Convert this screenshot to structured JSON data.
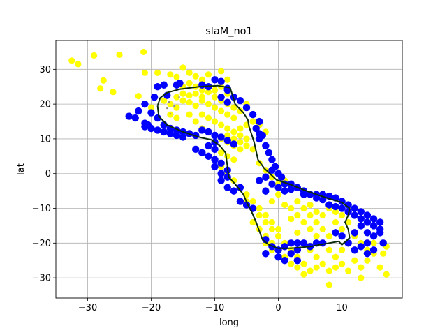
{
  "chart_data": {
    "type": "scatter",
    "title": "slaM_no1",
    "xlabel": "long",
    "ylabel": "lat",
    "xlim": [
      -35,
      19.5
    ],
    "ylim": [
      -35.8,
      38.3
    ],
    "xticks": [
      -30,
      -20,
      -10,
      0,
      10
    ],
    "yticks": [
      -30,
      -20,
      -10,
      0,
      10,
      20,
      30
    ],
    "xtick_labels": [
      "−30",
      "−20",
      "−10",
      "0",
      "10"
    ],
    "ytick_labels": [
      "−30",
      "−20",
      "−10",
      "0",
      "10",
      "20",
      "30"
    ],
    "grid": true,
    "colors": {
      "yellow_points": "#ffff00",
      "blue_points": "#0000ff",
      "outline": "#0b2a0b",
      "small_points": "#888888"
    },
    "yellow_points": [
      [
        -32.5,
        32.5
      ],
      [
        -31.5,
        31.5
      ],
      [
        -29,
        34
      ],
      [
        -25,
        34.2
      ],
      [
        -21.2,
        35
      ],
      [
        -28,
        24.5
      ],
      [
        -27.5,
        26.8
      ],
      [
        -26,
        23.5
      ],
      [
        -22,
        22.3
      ],
      [
        -21,
        29
      ],
      [
        -19,
        29
      ],
      [
        -17,
        28.5
      ],
      [
        -16,
        27.8
      ],
      [
        -15,
        30.5
      ],
      [
        -14,
        29
      ],
      [
        -13,
        28
      ],
      [
        -12,
        27
      ],
      [
        -11,
        28.5
      ],
      [
        -9,
        29.5
      ],
      [
        -8,
        27
      ],
      [
        -20,
        19
      ],
      [
        -18,
        21
      ],
      [
        -17,
        20
      ],
      [
        -16,
        19
      ],
      [
        -15,
        21
      ],
      [
        -14,
        20.5
      ],
      [
        -13,
        19.5
      ],
      [
        -12,
        21
      ],
      [
        -11,
        20
      ],
      [
        -10,
        19
      ],
      [
        -9,
        18
      ],
      [
        -8,
        17
      ],
      [
        -7,
        16
      ],
      [
        -16,
        22
      ],
      [
        -15,
        23
      ],
      [
        -14,
        22.5
      ],
      [
        -13,
        23
      ],
      [
        -12,
        22
      ],
      [
        -11,
        23.5
      ],
      [
        -10,
        22
      ],
      [
        -9,
        21
      ],
      [
        -8,
        20
      ],
      [
        -7,
        19
      ],
      [
        -6,
        18
      ],
      [
        -12,
        17
      ],
      [
        -11,
        16
      ],
      [
        -10,
        15
      ],
      [
        -9,
        14
      ],
      [
        -8,
        13
      ],
      [
        -7,
        12
      ],
      [
        -6,
        11
      ],
      [
        -5,
        10
      ],
      [
        -8,
        11
      ],
      [
        -7,
        10
      ],
      [
        -6,
        9
      ],
      [
        -5,
        8
      ],
      [
        -4,
        7
      ],
      [
        -9,
        10
      ],
      [
        -8,
        9
      ],
      [
        -7,
        8
      ],
      [
        -6,
        7
      ],
      [
        -9,
        6
      ],
      [
        -8,
        5
      ],
      [
        -7,
        4
      ],
      [
        -9,
        2
      ],
      [
        -8,
        0
      ],
      [
        -7,
        -2
      ],
      [
        -6,
        -4
      ],
      [
        -5,
        -6
      ],
      [
        -4,
        -8
      ],
      [
        -3,
        -10
      ],
      [
        -2,
        -12
      ],
      [
        -1,
        -14
      ],
      [
        0,
        -16
      ],
      [
        -3,
        3
      ],
      [
        -2,
        1
      ],
      [
        -1,
        -1
      ],
      [
        0,
        -3
      ],
      [
        1,
        -5
      ],
      [
        -5,
        -8
      ],
      [
        -4,
        -10
      ],
      [
        -3,
        -12
      ],
      [
        -2,
        -14
      ],
      [
        -1,
        -16
      ],
      [
        0,
        -18
      ],
      [
        1,
        -20
      ],
      [
        2,
        -22
      ],
      [
        3,
        -24
      ],
      [
        4,
        -26
      ],
      [
        5,
        -28
      ],
      [
        6,
        -27
      ],
      [
        7,
        -26
      ],
      [
        8,
        -28
      ],
      [
        9,
        -27
      ],
      [
        10,
        -26
      ],
      [
        11,
        -28
      ],
      [
        12,
        -25
      ],
      [
        13,
        -27
      ],
      [
        14,
        -25
      ],
      [
        15,
        -23
      ],
      [
        16,
        -27
      ],
      [
        16.5,
        -23
      ],
      [
        17,
        -21
      ],
      [
        17,
        -29
      ],
      [
        13,
        -30
      ],
      [
        8,
        -32
      ],
      [
        4,
        -29
      ],
      [
        2,
        -10
      ],
      [
        3,
        -12
      ],
      [
        4,
        -14
      ],
      [
        5,
        -16
      ],
      [
        6,
        -18
      ],
      [
        7,
        -20
      ],
      [
        8,
        -22
      ],
      [
        9,
        -24
      ],
      [
        10,
        -22
      ],
      [
        11,
        -20
      ],
      [
        12,
        -18
      ],
      [
        13,
        -20
      ],
      [
        14,
        -22
      ],
      [
        15,
        -20
      ],
      [
        3,
        -8
      ],
      [
        4,
        -10
      ],
      [
        5,
        -12
      ],
      [
        6,
        -14
      ],
      [
        7,
        -16
      ],
      [
        8,
        -18
      ],
      [
        9,
        -14
      ],
      [
        10,
        -16
      ],
      [
        11,
        -14
      ],
      [
        12,
        -12
      ],
      [
        -1,
        -8
      ],
      [
        0,
        -6
      ],
      [
        1,
        -9
      ],
      [
        2,
        -13
      ],
      [
        3,
        -17
      ],
      [
        4,
        -20
      ],
      [
        5,
        -22
      ],
      [
        6,
        -24
      ],
      [
        -2,
        -18
      ],
      [
        -1,
        -20
      ],
      [
        0,
        -22
      ],
      [
        1,
        -24
      ],
      [
        2,
        -26
      ],
      [
        3,
        -27
      ],
      [
        -4,
        15
      ],
      [
        -3,
        14
      ],
      [
        -2,
        12
      ],
      [
        -5,
        14
      ],
      [
        -6,
        13
      ],
      [
        -10,
        24
      ],
      [
        -9,
        25
      ],
      [
        -8,
        23
      ],
      [
        -7,
        22
      ],
      [
        -6,
        21
      ],
      [
        -5,
        20
      ],
      [
        -14,
        26
      ],
      [
        -13,
        25
      ],
      [
        -12,
        24
      ],
      [
        -15,
        25
      ],
      [
        -17,
        17
      ],
      [
        -16,
        16
      ],
      [
        -14,
        17
      ],
      [
        -13,
        15
      ],
      [
        -12,
        13
      ],
      [
        -11,
        12
      ],
      [
        -10,
        11
      ],
      [
        -4,
        -14
      ],
      [
        -3,
        -16
      ],
      [
        -2,
        -20
      ],
      [
        -1,
        -22
      ],
      [
        5,
        -9
      ],
      [
        6,
        -11
      ],
      [
        7,
        -12
      ],
      [
        8,
        -10
      ],
      [
        9,
        -11
      ],
      [
        10,
        -12
      ],
      [
        4,
        -6
      ],
      [
        2,
        -4
      ],
      [
        1,
        -2
      ],
      [
        0,
        0
      ]
    ],
    "blue_points": [
      [
        -21,
        20
      ],
      [
        -22,
        18
      ],
      [
        -20,
        17.5
      ],
      [
        -19,
        16
      ],
      [
        -18,
        14
      ],
      [
        -17,
        13
      ],
      [
        -16,
        12.5
      ],
      [
        -15,
        12
      ],
      [
        -14,
        11.5
      ],
      [
        -13,
        11
      ],
      [
        -12,
        12.5
      ],
      [
        -11,
        12
      ],
      [
        -10,
        11
      ],
      [
        -9,
        10.5
      ],
      [
        -8,
        9.5
      ],
      [
        -7,
        8.5
      ],
      [
        -23.5,
        16.5
      ],
      [
        -22.5,
        16
      ],
      [
        -21,
        14.5
      ],
      [
        -20,
        13
      ],
      [
        -19,
        12.5
      ],
      [
        -18,
        12
      ],
      [
        -17,
        11.5
      ],
      [
        -16,
        11
      ],
      [
        -15,
        10.5
      ],
      [
        -19.5,
        22
      ],
      [
        -17.5,
        22.5
      ],
      [
        -16,
        25.5
      ],
      [
        -15.5,
        26
      ],
      [
        -12,
        25.5
      ],
      [
        -11,
        25
      ],
      [
        -10,
        27
      ],
      [
        -9,
        26.5
      ],
      [
        -8,
        24
      ],
      [
        -7,
        22
      ],
      [
        -6,
        21
      ],
      [
        -5,
        19
      ],
      [
        -4,
        17
      ],
      [
        -3,
        15
      ],
      [
        -3.5,
        13
      ],
      [
        -2.5,
        11
      ],
      [
        -3,
        10
      ],
      [
        -2,
        8
      ],
      [
        -1.5,
        6
      ],
      [
        -1,
        4
      ],
      [
        -0.5,
        2
      ],
      [
        0,
        0
      ],
      [
        0.5,
        -1
      ],
      [
        -2,
        -1
      ],
      [
        -1,
        -3
      ],
      [
        0,
        -4
      ],
      [
        1,
        -5
      ],
      [
        2,
        -3
      ],
      [
        3,
        -4
      ],
      [
        4,
        -5
      ],
      [
        5,
        -6
      ],
      [
        6,
        -6
      ],
      [
        7,
        -6
      ],
      [
        8,
        -6.5
      ],
      [
        9,
        -7
      ],
      [
        10,
        -8
      ],
      [
        11,
        -9
      ],
      [
        12,
        -10
      ],
      [
        13,
        -11
      ],
      [
        14,
        -12
      ],
      [
        15,
        -13
      ],
      [
        16,
        -14
      ],
      [
        16,
        -16
      ],
      [
        15,
        -18
      ],
      [
        14,
        -20
      ],
      [
        13,
        -21
      ],
      [
        12,
        -22
      ],
      [
        11,
        -20
      ],
      [
        10,
        -18
      ],
      [
        9,
        -17
      ],
      [
        13,
        -15
      ],
      [
        12,
        -17
      ],
      [
        14,
        -17
      ],
      [
        15,
        -22
      ],
      [
        16.5,
        -20
      ],
      [
        14,
        -23
      ],
      [
        -5,
        -9
      ],
      [
        -4,
        -10
      ],
      [
        -9,
        -2
      ],
      [
        -8,
        -4
      ],
      [
        -7,
        -5
      ],
      [
        -6,
        -4
      ],
      [
        -11,
        5
      ],
      [
        -10,
        4
      ],
      [
        -9,
        3
      ],
      [
        -8,
        1
      ],
      [
        -9,
        0
      ],
      [
        -8,
        -1
      ],
      [
        -10,
        2
      ],
      [
        -12,
        6
      ],
      [
        -13,
        7
      ],
      [
        -10,
        9
      ],
      [
        -11,
        8
      ],
      [
        -10,
        7
      ],
      [
        -2,
        -19
      ],
      [
        -1,
        -21
      ],
      [
        0,
        -22
      ],
      [
        1,
        -21
      ],
      [
        2,
        -20
      ],
      [
        3,
        -20
      ],
      [
        4,
        -20
      ],
      [
        3,
        -22
      ],
      [
        2,
        -23
      ],
      [
        0,
        -24
      ],
      [
        1,
        -25
      ],
      [
        3,
        -25
      ],
      [
        -2,
        -23
      ],
      [
        -8,
        24.5
      ],
      [
        -9,
        22
      ],
      [
        -8,
        20.5
      ],
      [
        -18,
        25.5
      ],
      [
        -19,
        25
      ],
      [
        -21,
        13.5
      ],
      [
        -20.5,
        14
      ],
      [
        -6,
        -8
      ],
      [
        5,
        -21
      ],
      [
        6,
        -20
      ],
      [
        7,
        -20
      ],
      [
        -3,
        11.5
      ],
      [
        -3,
        -2
      ],
      [
        -2,
        -5
      ],
      [
        8,
        -9
      ],
      [
        9,
        -9.5
      ],
      [
        10,
        -10
      ],
      [
        11,
        -11
      ],
      [
        12,
        -12
      ],
      [
        13,
        -13
      ],
      [
        14,
        -14
      ],
      [
        15,
        -15
      ],
      [
        16,
        -17
      ],
      [
        -1,
        1
      ],
      [
        1,
        -3
      ],
      [
        2,
        -4.5
      ],
      [
        4,
        -6
      ],
      [
        6,
        -7
      ],
      [
        7,
        -7.5
      ]
    ],
    "small_points": [
      [
        -17.2,
        20.6
      ],
      [
        -15.6,
        22
      ],
      [
        -17.5,
        18.8
      ],
      [
        -17,
        17.2
      ],
      [
        -16.4,
        19.4
      ]
    ],
    "outline_path": [
      [
        -19,
        19.5
      ],
      [
        -18.6,
        21.8
      ],
      [
        -17.5,
        23.3
      ],
      [
        -15.5,
        24.3
      ],
      [
        -12.5,
        25
      ],
      [
        -9.5,
        25.3
      ],
      [
        -7.6,
        24.7
      ],
      [
        -7.2,
        22.5
      ],
      [
        -6.8,
        20
      ],
      [
        -5.5,
        17.5
      ],
      [
        -4.8,
        15.5
      ],
      [
        -4.6,
        13.5
      ],
      [
        -3.8,
        9
      ],
      [
        -3.2,
        4
      ],
      [
        -2.2,
        1.5
      ],
      [
        -0.3,
        -1.8
      ],
      [
        2,
        -3.2
      ],
      [
        4,
        -4.7
      ],
      [
        6,
        -6
      ],
      [
        8,
        -7.2
      ],
      [
        10,
        -8.3
      ],
      [
        11.2,
        -10
      ],
      [
        11,
        -12
      ],
      [
        10.5,
        -14
      ],
      [
        11,
        -16
      ],
      [
        11.2,
        -18.5
      ],
      [
        10,
        -20.5
      ],
      [
        9.5,
        -19.5
      ],
      [
        8,
        -20
      ],
      [
        5,
        -21
      ],
      [
        2,
        -21.5
      ],
      [
        0,
        -21.5
      ],
      [
        -1.5,
        -20.5
      ],
      [
        -2.5,
        -19
      ],
      [
        -3.5,
        -14
      ],
      [
        -4.2,
        -11
      ],
      [
        -4.8,
        -9
      ],
      [
        -5.5,
        -6
      ],
      [
        -6.8,
        -3
      ],
      [
        -7.8,
        -1
      ],
      [
        -8,
        2
      ],
      [
        -8.3,
        6
      ],
      [
        -9.2,
        8
      ],
      [
        -10.5,
        9.7
      ],
      [
        -12.5,
        10.5
      ],
      [
        -15,
        12
      ],
      [
        -17.5,
        14
      ],
      [
        -18.8,
        16.5
      ],
      [
        -19,
        19.5
      ]
    ]
  }
}
